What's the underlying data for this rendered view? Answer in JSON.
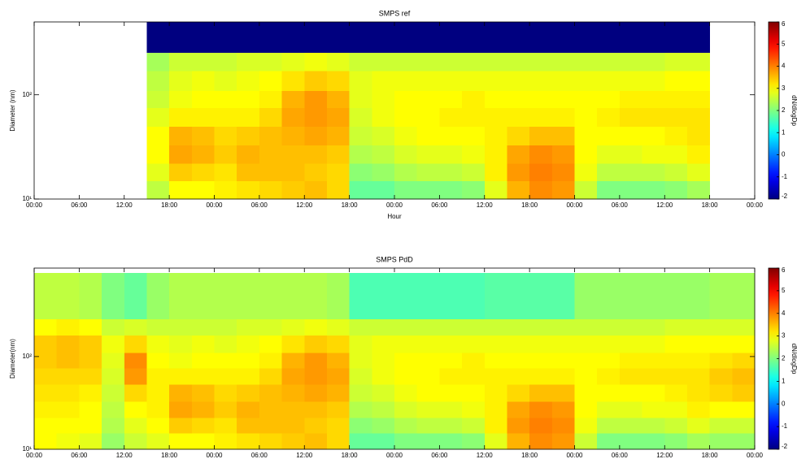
{
  "chart_data": [
    {
      "type": "heatmap",
      "title": "SMPS ref",
      "xlabel": "Hour",
      "ylabel": "Diameter (nm)",
      "colorbar_label": "dN/dlogDp",
      "colormap": "jet",
      "log_y": true,
      "x": [
        0,
        3,
        6,
        9,
        12,
        15,
        18,
        21,
        24,
        27,
        30,
        33,
        36,
        39,
        42,
        45,
        48,
        51,
        54,
        57,
        60,
        63,
        66,
        69,
        72,
        75,
        78,
        81,
        84,
        87,
        90,
        93,
        96
      ],
      "y": [
        10,
        15,
        22,
        33,
        50,
        75,
        110,
        170,
        255,
        500
      ],
      "values": [
        [
          null,
          null,
          null,
          null,
          null,
          null,
          null,
          null,
          null
        ],
        [
          null,
          null,
          null,
          null,
          null,
          null,
          null,
          null,
          null
        ],
        [
          null,
          null,
          null,
          null,
          null,
          null,
          null,
          null,
          null
        ],
        [
          null,
          null,
          null,
          null,
          null,
          null,
          null,
          null,
          null
        ],
        [
          null,
          null,
          null,
          null,
          null,
          null,
          null,
          null,
          null
        ],
        [
          2.5,
          2.8,
          3,
          3,
          2.8,
          2.6,
          2.5,
          2.3,
          -2
        ],
        [
          3,
          3.4,
          3.7,
          3.6,
          3.1,
          2.9,
          2.8,
          2.6,
          -2
        ],
        [
          3,
          3.3,
          3.6,
          3.5,
          3.1,
          3,
          2.9,
          2.6,
          -2
        ],
        [
          3.1,
          3.2,
          3.4,
          3.3,
          3.1,
          3,
          2.8,
          2.6,
          -2
        ],
        [
          3.2,
          3.5,
          3.6,
          3.4,
          3.1,
          3,
          2.9,
          2.7,
          -2
        ],
        [
          3.3,
          3.5,
          3.5,
          3.5,
          3.3,
          3.1,
          3,
          2.7,
          -2
        ],
        [
          3.4,
          3.5,
          3.5,
          3.6,
          3.7,
          3.6,
          3.2,
          2.8,
          -2
        ],
        [
          3.5,
          3.4,
          3.5,
          3.7,
          3.8,
          3.8,
          3.4,
          2.9,
          -2
        ],
        [
          3.3,
          3.3,
          3.4,
          3.6,
          3.7,
          3.6,
          3.3,
          2.8,
          -2
        ],
        [
          1.8,
          2.1,
          2.4,
          2.6,
          2.7,
          2.8,
          2.8,
          2.6,
          -2
        ],
        [
          1.8,
          2.2,
          2.5,
          2.7,
          2.9,
          2.9,
          2.9,
          2.6,
          -2
        ],
        [
          2,
          2.4,
          2.7,
          2.9,
          3,
          3,
          2.9,
          2.6,
          -2
        ],
        [
          2,
          2.5,
          2.8,
          3,
          3,
          3,
          2.9,
          2.6,
          -2
        ],
        [
          2,
          2.5,
          2.8,
          3,
          3.1,
          3,
          2.9,
          2.6,
          -2
        ],
        [
          2.1,
          2.6,
          2.9,
          3,
          3.1,
          3.1,
          2.9,
          2.6,
          -2
        ],
        [
          2.8,
          3.1,
          3.1,
          3.1,
          3.1,
          3,
          2.9,
          2.6,
          -2
        ],
        [
          3.6,
          3.8,
          3.7,
          3.3,
          3.1,
          3,
          2.9,
          2.6,
          -2
        ],
        [
          3.9,
          4,
          3.9,
          3.5,
          3.1,
          3,
          2.9,
          2.6,
          -2
        ],
        [
          3.8,
          3.9,
          3.8,
          3.5,
          3.1,
          3,
          2.9,
          2.6,
          -2
        ],
        [
          2.6,
          2.9,
          3,
          3,
          3,
          3,
          2.9,
          2.6,
          -2
        ],
        [
          2,
          2.5,
          2.8,
          3,
          3.1,
          3,
          2.9,
          2.6,
          -2
        ],
        [
          2,
          2.5,
          2.8,
          3,
          3.2,
          3.1,
          2.9,
          2.6,
          -2
        ],
        [
          2,
          2.5,
          2.9,
          3,
          3.2,
          3.1,
          2.9,
          2.6,
          -2
        ],
        [
          2.1,
          2.6,
          2.9,
          3.1,
          3.2,
          3.1,
          3,
          2.7,
          -2
        ],
        [
          2.3,
          2.8,
          3.1,
          3.2,
          3.2,
          3.1,
          3,
          2.7,
          -2
        ],
        [
          null,
          null,
          null,
          null,
          null,
          null,
          null,
          null,
          null
        ],
        [
          null,
          null,
          null,
          null,
          null,
          null,
          null,
          null,
          null
        ]
      ],
      "xlim": [
        0,
        96
      ],
      "xticks": [
        {
          "value": 0,
          "label": "00:00"
        },
        {
          "value": 6,
          "label": "06:00"
        },
        {
          "value": 12,
          "label": "12:00"
        },
        {
          "value": 18,
          "label": "18:00"
        },
        {
          "value": 24,
          "label": "00:00"
        },
        {
          "value": 30,
          "label": "06:00"
        },
        {
          "value": 36,
          "label": "12:00"
        },
        {
          "value": 42,
          "label": "18:00"
        },
        {
          "value": 48,
          "label": "00:00"
        },
        {
          "value": 54,
          "label": "06:00"
        },
        {
          "value": 60,
          "label": "12:00"
        },
        {
          "value": 66,
          "label": "18:00"
        },
        {
          "value": 72,
          "label": "00:00"
        },
        {
          "value": 78,
          "label": "06:00"
        },
        {
          "value": 84,
          "label": "12:00"
        },
        {
          "value": 90,
          "label": "18:00"
        },
        {
          "value": 96,
          "label": "00:00"
        }
      ],
      "ylim": [
        10,
        500
      ],
      "yticks": [
        {
          "value": 10,
          "label": "10¹"
        },
        {
          "value": 100,
          "label": "10²"
        }
      ],
      "clim": [
        -2,
        6
      ],
      "cticks": [
        -2,
        -1,
        0,
        1,
        2,
        3,
        4,
        5,
        6
      ]
    },
    {
      "type": "heatmap",
      "title": "SMPS PdD",
      "ylabel": "Diameter(nm)",
      "colorbar_label": "dN/dlogDp",
      "colormap": "jet",
      "log_y": true,
      "x": [
        0,
        3,
        6,
        9,
        12,
        15,
        18,
        21,
        24,
        27,
        30,
        33,
        36,
        39,
        42,
        45,
        48,
        51,
        54,
        57,
        60,
        63,
        66,
        69,
        72,
        75,
        78,
        81,
        84,
        87,
        90,
        93,
        96
      ],
      "y": [
        10,
        15,
        22,
        33,
        50,
        75,
        110,
        170,
        255,
        800
      ],
      "values": [
        [
          3,
          3,
          3.1,
          3.2,
          3.3,
          3.4,
          3.4,
          3,
          2.5
        ],
        [
          2.9,
          3,
          3.1,
          3.2,
          3.3,
          3.5,
          3.5,
          3.1,
          2.5
        ],
        [
          2.8,
          3,
          3,
          3.1,
          3.3,
          3.4,
          3.4,
          3,
          2.4
        ],
        [
          2.2,
          2.4,
          2.5,
          2.6,
          2.7,
          2.8,
          2.9,
          2.6,
          2
        ],
        [
          2.6,
          2.8,
          3,
          3.3,
          3.8,
          3.9,
          3.3,
          2.7,
          1.8
        ],
        [
          2.8,
          3,
          3.1,
          3.1,
          3.1,
          3,
          2.9,
          2.6,
          2.2
        ],
        [
          3,
          3.4,
          3.7,
          3.6,
          3.1,
          2.9,
          2.8,
          2.6,
          2.4
        ],
        [
          3,
          3.3,
          3.6,
          3.5,
          3.1,
          3,
          2.9,
          2.6,
          2.4
        ],
        [
          3.1,
          3.2,
          3.4,
          3.3,
          3.1,
          3,
          2.8,
          2.6,
          2.4
        ],
        [
          3.2,
          3.5,
          3.6,
          3.4,
          3.1,
          3,
          2.9,
          2.7,
          2.4
        ],
        [
          3.3,
          3.5,
          3.5,
          3.5,
          3.3,
          3.1,
          3,
          2.7,
          2.4
        ],
        [
          3.4,
          3.5,
          3.5,
          3.6,
          3.7,
          3.6,
          3.2,
          2.8,
          2.4
        ],
        [
          3.5,
          3.4,
          3.5,
          3.7,
          3.8,
          3.8,
          3.4,
          2.9,
          2.4
        ],
        [
          3.3,
          3.3,
          3.4,
          3.6,
          3.7,
          3.6,
          3.3,
          2.8,
          2.3
        ],
        [
          1.8,
          2.1,
          2.4,
          2.6,
          2.7,
          2.8,
          2.8,
          2.6,
          1.6
        ],
        [
          1.8,
          2.2,
          2.5,
          2.7,
          2.9,
          2.9,
          2.9,
          2.6,
          1.6
        ],
        [
          2,
          2.4,
          2.7,
          2.9,
          3,
          3,
          2.9,
          2.6,
          1.6
        ],
        [
          2,
          2.5,
          2.8,
          3,
          3,
          3,
          2.9,
          2.6,
          1.6
        ],
        [
          2,
          2.5,
          2.8,
          3,
          3.1,
          3,
          2.9,
          2.6,
          1.6
        ],
        [
          2.1,
          2.6,
          2.9,
          3,
          3.1,
          3.1,
          2.9,
          2.6,
          1.6
        ],
        [
          2.8,
          3.1,
          3.1,
          3.1,
          3.1,
          3,
          2.9,
          2.6,
          1.7
        ],
        [
          3.6,
          3.8,
          3.7,
          3.3,
          3.1,
          3,
          2.9,
          2.6,
          1.7
        ],
        [
          3.9,
          4,
          3.9,
          3.5,
          3.1,
          3,
          2.9,
          2.6,
          1.7
        ],
        [
          3.8,
          3.9,
          3.8,
          3.5,
          3.1,
          3,
          2.9,
          2.6,
          1.7
        ],
        [
          2.6,
          2.9,
          3,
          3,
          3,
          3,
          2.9,
          2.6,
          2.2
        ],
        [
          2,
          2.5,
          2.8,
          3,
          3.1,
          3,
          2.9,
          2.6,
          2.2
        ],
        [
          2,
          2.5,
          2.8,
          3,
          3.2,
          3.1,
          2.9,
          2.6,
          2.2
        ],
        [
          2,
          2.5,
          2.9,
          3,
          3.2,
          3.1,
          2.9,
          2.6,
          2.2
        ],
        [
          2.1,
          2.6,
          2.9,
          3.1,
          3.2,
          3.1,
          3,
          2.7,
          2.2
        ],
        [
          2.3,
          2.8,
          3.1,
          3.2,
          3.2,
          3.1,
          3,
          2.7,
          2.2
        ],
        [
          2.2,
          2.6,
          3,
          3.3,
          3.4,
          3.2,
          3,
          2.7,
          2.3
        ],
        [
          2.2,
          2.6,
          3,
          3.4,
          3.5,
          3.3,
          3,
          2.7,
          2.3
        ]
      ],
      "xlim": [
        0,
        96
      ],
      "xticks": [
        {
          "value": 0,
          "label": "00:00"
        },
        {
          "value": 6,
          "label": "06:00"
        },
        {
          "value": 12,
          "label": "12:00"
        },
        {
          "value": 18,
          "label": "18:00"
        },
        {
          "value": 24,
          "label": "00:00"
        },
        {
          "value": 30,
          "label": "06:00"
        },
        {
          "value": 36,
          "label": "12:00"
        },
        {
          "value": 42,
          "label": "18:00"
        },
        {
          "value": 48,
          "label": "00:00"
        },
        {
          "value": 54,
          "label": "06:00"
        },
        {
          "value": 60,
          "label": "12:00"
        },
        {
          "value": 66,
          "label": "18:00"
        },
        {
          "value": 72,
          "label": "00:00"
        },
        {
          "value": 78,
          "label": "06:00"
        },
        {
          "value": 84,
          "label": "12:00"
        },
        {
          "value": 90,
          "label": "18:00"
        },
        {
          "value": 96,
          "label": "00:00"
        }
      ],
      "ylim": [
        10,
        900
      ],
      "yticks": [
        {
          "value": 10,
          "label": "10¹"
        },
        {
          "value": 100,
          "label": "10²"
        }
      ],
      "clim": [
        -2,
        6
      ],
      "cticks": [
        -2,
        -1,
        0,
        1,
        2,
        3,
        4,
        5,
        6
      ]
    }
  ]
}
